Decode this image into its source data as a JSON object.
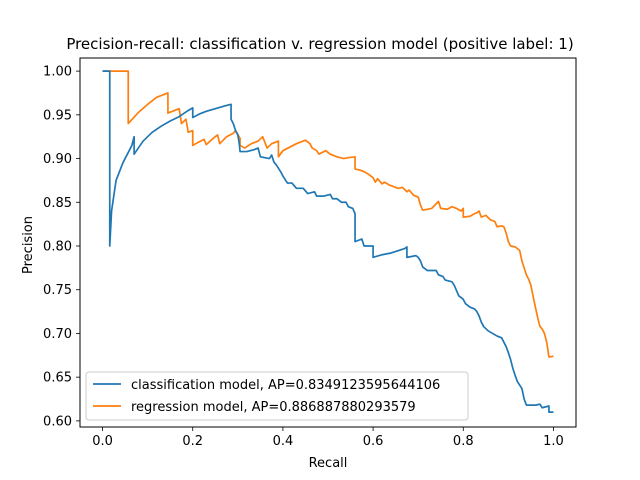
{
  "chart_data": {
    "type": "line",
    "title": "Precision-recall: classification v. regression model (positive label: 1)",
    "xlabel": "Recall",
    "ylabel": "Precision",
    "xlim": [
      -0.05,
      1.05
    ],
    "ylim": [
      0.593,
      1.015
    ],
    "xticks": [
      {
        "value": 0.0,
        "label": "0.0"
      },
      {
        "value": 0.2,
        "label": "0.2"
      },
      {
        "value": 0.4,
        "label": "0.4"
      },
      {
        "value": 0.6,
        "label": "0.6"
      },
      {
        "value": 0.8,
        "label": "0.8"
      },
      {
        "value": 1.0,
        "label": "1.0"
      }
    ],
    "yticks": [
      {
        "value": 0.6,
        "label": "0.60"
      },
      {
        "value": 0.65,
        "label": "0.65"
      },
      {
        "value": 0.7,
        "label": "0.70"
      },
      {
        "value": 0.75,
        "label": "0.75"
      },
      {
        "value": 0.8,
        "label": "0.80"
      },
      {
        "value": 0.85,
        "label": "0.85"
      },
      {
        "value": 0.9,
        "label": "0.90"
      },
      {
        "value": 0.95,
        "label": "0.95"
      },
      {
        "value": 1.0,
        "label": "1.00"
      }
    ],
    "grid": false,
    "legend_position": "lower-left",
    "series": [
      {
        "name": "classification model, AP=0.8349123595644106",
        "color": "#1f77b4",
        "points": [
          [
            0.0,
            1.0
          ],
          [
            0.016,
            1.0
          ],
          [
            0.016,
            0.8
          ],
          [
            0.02,
            0.84
          ],
          [
            0.03,
            0.875
          ],
          [
            0.045,
            0.895
          ],
          [
            0.065,
            0.915
          ],
          [
            0.07,
            0.925
          ],
          [
            0.07,
            0.905
          ],
          [
            0.09,
            0.92
          ],
          [
            0.11,
            0.93
          ],
          [
            0.13,
            0.937
          ],
          [
            0.15,
            0.943
          ],
          [
            0.17,
            0.948
          ],
          [
            0.19,
            0.955
          ],
          [
            0.2,
            0.958
          ],
          [
            0.2,
            0.947
          ],
          [
            0.215,
            0.951
          ],
          [
            0.23,
            0.954
          ],
          [
            0.25,
            0.957
          ],
          [
            0.27,
            0.96
          ],
          [
            0.285,
            0.962
          ],
          [
            0.285,
            0.945
          ],
          [
            0.29,
            0.94
          ],
          [
            0.295,
            0.932
          ],
          [
            0.3,
            0.927
          ],
          [
            0.303,
            0.918
          ],
          [
            0.305,
            0.908
          ],
          [
            0.32,
            0.908
          ],
          [
            0.335,
            0.91
          ],
          [
            0.345,
            0.912
          ],
          [
            0.35,
            0.902
          ],
          [
            0.37,
            0.9
          ],
          [
            0.375,
            0.904
          ],
          [
            0.38,
            0.896
          ],
          [
            0.385,
            0.893
          ],
          [
            0.39,
            0.889
          ],
          [
            0.395,
            0.885
          ],
          [
            0.4,
            0.88
          ],
          [
            0.405,
            0.876
          ],
          [
            0.41,
            0.872
          ],
          [
            0.42,
            0.872
          ],
          [
            0.43,
            0.866
          ],
          [
            0.445,
            0.866
          ],
          [
            0.455,
            0.86
          ],
          [
            0.47,
            0.862
          ],
          [
            0.475,
            0.857
          ],
          [
            0.49,
            0.857
          ],
          [
            0.505,
            0.859
          ],
          [
            0.51,
            0.854
          ],
          [
            0.52,
            0.854
          ],
          [
            0.53,
            0.85
          ],
          [
            0.54,
            0.85
          ],
          [
            0.545,
            0.845
          ],
          [
            0.555,
            0.843
          ],
          [
            0.56,
            0.837
          ],
          [
            0.56,
            0.805
          ],
          [
            0.575,
            0.808
          ],
          [
            0.58,
            0.8
          ],
          [
            0.6,
            0.8
          ],
          [
            0.6,
            0.787
          ],
          [
            0.62,
            0.79
          ],
          [
            0.64,
            0.792
          ],
          [
            0.67,
            0.797
          ],
          [
            0.675,
            0.799
          ],
          [
            0.675,
            0.787
          ],
          [
            0.695,
            0.789
          ],
          [
            0.7,
            0.787
          ],
          [
            0.705,
            0.783
          ],
          [
            0.71,
            0.776
          ],
          [
            0.72,
            0.772
          ],
          [
            0.74,
            0.772
          ],
          [
            0.745,
            0.767
          ],
          [
            0.755,
            0.765
          ],
          [
            0.76,
            0.761
          ],
          [
            0.775,
            0.759
          ],
          [
            0.78,
            0.755
          ],
          [
            0.785,
            0.749
          ],
          [
            0.79,
            0.743
          ],
          [
            0.8,
            0.739
          ],
          [
            0.805,
            0.734
          ],
          [
            0.815,
            0.73
          ],
          [
            0.825,
            0.728
          ],
          [
            0.83,
            0.725
          ],
          [
            0.835,
            0.72
          ],
          [
            0.84,
            0.713
          ],
          [
            0.845,
            0.708
          ],
          [
            0.855,
            0.703
          ],
          [
            0.865,
            0.7
          ],
          [
            0.875,
            0.697
          ],
          [
            0.885,
            0.695
          ],
          [
            0.89,
            0.69
          ],
          [
            0.895,
            0.685
          ],
          [
            0.9,
            0.678
          ],
          [
            0.905,
            0.67
          ],
          [
            0.91,
            0.66
          ],
          [
            0.915,
            0.652
          ],
          [
            0.92,
            0.645
          ],
          [
            0.93,
            0.637
          ],
          [
            0.935,
            0.625
          ],
          [
            0.94,
            0.618
          ],
          [
            0.96,
            0.618
          ],
          [
            0.97,
            0.619
          ],
          [
            0.975,
            0.615
          ],
          [
            0.99,
            0.617
          ],
          [
            0.99,
            0.61
          ],
          [
            1.0,
            0.61
          ]
        ]
      },
      {
        "name": "regression model, AP=0.886887880293579",
        "color": "#ff7f0e",
        "points": [
          [
            0.0,
            1.0
          ],
          [
            0.057,
            1.0
          ],
          [
            0.057,
            0.94
          ],
          [
            0.08,
            0.953
          ],
          [
            0.1,
            0.962
          ],
          [
            0.12,
            0.97
          ],
          [
            0.145,
            0.975
          ],
          [
            0.145,
            0.952
          ],
          [
            0.16,
            0.955
          ],
          [
            0.17,
            0.957
          ],
          [
            0.175,
            0.94
          ],
          [
            0.185,
            0.945
          ],
          [
            0.19,
            0.93
          ],
          [
            0.2,
            0.932
          ],
          [
            0.2,
            0.915
          ],
          [
            0.21,
            0.918
          ],
          [
            0.225,
            0.922
          ],
          [
            0.23,
            0.916
          ],
          [
            0.245,
            0.923
          ],
          [
            0.255,
            0.927
          ],
          [
            0.26,
            0.917
          ],
          [
            0.275,
            0.925
          ],
          [
            0.29,
            0.929
          ],
          [
            0.295,
            0.932
          ],
          [
            0.305,
            0.923
          ],
          [
            0.305,
            0.915
          ],
          [
            0.315,
            0.912
          ],
          [
            0.33,
            0.917
          ],
          [
            0.345,
            0.92
          ],
          [
            0.355,
            0.925
          ],
          [
            0.365,
            0.912
          ],
          [
            0.375,
            0.917
          ],
          [
            0.39,
            0.92
          ],
          [
            0.39,
            0.902
          ],
          [
            0.4,
            0.909
          ],
          [
            0.415,
            0.913
          ],
          [
            0.43,
            0.917
          ],
          [
            0.45,
            0.921
          ],
          [
            0.46,
            0.917
          ],
          [
            0.465,
            0.912
          ],
          [
            0.475,
            0.909
          ],
          [
            0.48,
            0.905
          ],
          [
            0.495,
            0.909
          ],
          [
            0.505,
            0.905
          ],
          [
            0.52,
            0.902
          ],
          [
            0.535,
            0.9
          ],
          [
            0.545,
            0.901
          ],
          [
            0.56,
            0.902
          ],
          [
            0.56,
            0.888
          ],
          [
            0.57,
            0.887
          ],
          [
            0.58,
            0.885
          ],
          [
            0.59,
            0.882
          ],
          [
            0.6,
            0.878
          ],
          [
            0.605,
            0.873
          ],
          [
            0.61,
            0.877
          ],
          [
            0.62,
            0.871
          ],
          [
            0.625,
            0.873
          ],
          [
            0.635,
            0.87
          ],
          [
            0.645,
            0.868
          ],
          [
            0.655,
            0.866
          ],
          [
            0.665,
            0.867
          ],
          [
            0.675,
            0.862
          ],
          [
            0.68,
            0.864
          ],
          [
            0.69,
            0.858
          ],
          [
            0.7,
            0.856
          ],
          [
            0.705,
            0.847
          ],
          [
            0.71,
            0.841
          ],
          [
            0.73,
            0.843
          ],
          [
            0.745,
            0.851
          ],
          [
            0.75,
            0.843
          ],
          [
            0.765,
            0.842
          ],
          [
            0.775,
            0.845
          ],
          [
            0.785,
            0.843
          ],
          [
            0.795,
            0.84
          ],
          [
            0.8,
            0.843
          ],
          [
            0.8,
            0.833
          ],
          [
            0.815,
            0.834
          ],
          [
            0.825,
            0.837
          ],
          [
            0.83,
            0.838
          ],
          [
            0.835,
            0.84
          ],
          [
            0.84,
            0.833
          ],
          [
            0.85,
            0.835
          ],
          [
            0.86,
            0.83
          ],
          [
            0.87,
            0.828
          ],
          [
            0.875,
            0.822
          ],
          [
            0.885,
            0.823
          ],
          [
            0.89,
            0.822
          ],
          [
            0.895,
            0.815
          ],
          [
            0.9,
            0.805
          ],
          [
            0.905,
            0.8
          ],
          [
            0.915,
            0.799
          ],
          [
            0.925,
            0.795
          ],
          [
            0.93,
            0.783
          ],
          [
            0.935,
            0.775
          ],
          [
            0.94,
            0.767
          ],
          [
            0.945,
            0.762
          ],
          [
            0.95,
            0.755
          ],
          [
            0.955,
            0.742
          ],
          [
            0.96,
            0.73
          ],
          [
            0.965,
            0.718
          ],
          [
            0.97,
            0.708
          ],
          [
            0.975,
            0.705
          ],
          [
            0.98,
            0.7
          ],
          [
            0.985,
            0.69
          ],
          [
            0.99,
            0.673
          ],
          [
            1.0,
            0.674
          ]
        ]
      }
    ]
  }
}
